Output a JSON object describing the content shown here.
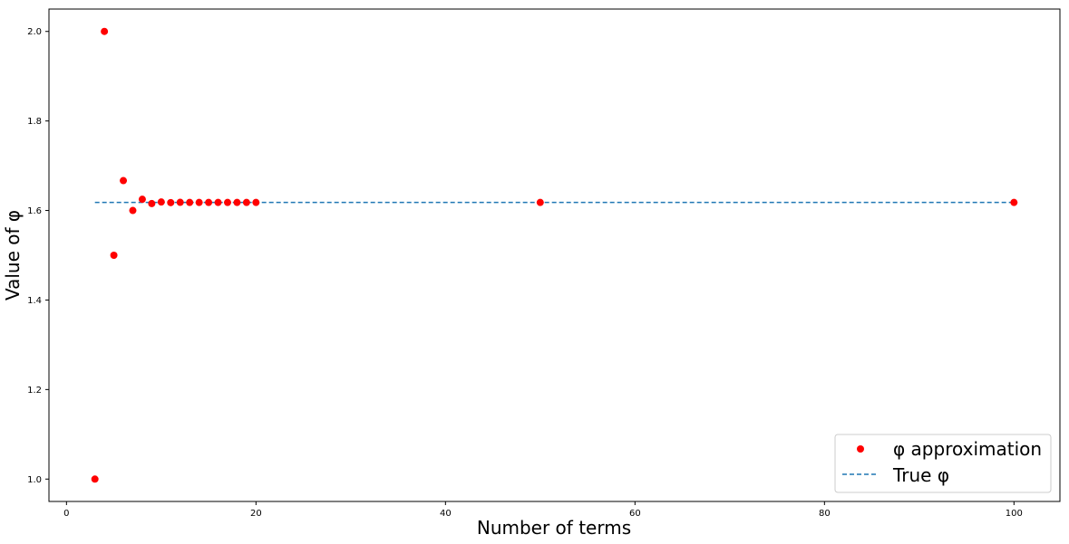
{
  "chart_data": {
    "type": "scatter",
    "xlabel": "Number of terms",
    "ylabel": "Value of φ",
    "xlim": [
      -1.85,
      104.85
    ],
    "ylim": [
      0.95,
      2.05
    ],
    "xticks": [
      0,
      20,
      40,
      60,
      80,
      100
    ],
    "yticks": [
      1.0,
      1.2,
      1.4,
      1.6,
      1.8,
      2.0
    ],
    "x_tick_labels": [
      "0",
      "20",
      "40",
      "60",
      "80",
      "100"
    ],
    "y_tick_labels": [
      "1.0",
      "1.2",
      "1.4",
      "1.6",
      "1.8",
      "2.0"
    ],
    "grid": false,
    "legend_position": "bottom-right",
    "series": [
      {
        "name": "φ approximation",
        "style": "markers",
        "color": "#ff0000",
        "points": [
          [
            3,
            1.0
          ],
          [
            4,
            2.0
          ],
          [
            5,
            1.5
          ],
          [
            6,
            1.6667
          ],
          [
            7,
            1.6
          ],
          [
            8,
            1.625
          ],
          [
            9,
            1.6154
          ],
          [
            10,
            1.619
          ],
          [
            11,
            1.6176
          ],
          [
            12,
            1.6182
          ],
          [
            13,
            1.618
          ],
          [
            14,
            1.618
          ],
          [
            15,
            1.618
          ],
          [
            16,
            1.618
          ],
          [
            17,
            1.618
          ],
          [
            18,
            1.618
          ],
          [
            19,
            1.618
          ],
          [
            20,
            1.618
          ],
          [
            50,
            1.618
          ],
          [
            100,
            1.618
          ]
        ]
      },
      {
        "name": "True φ",
        "style": "dashed-line",
        "color": "#1f77b4",
        "points": [
          [
            3,
            1.618034
          ],
          [
            100,
            1.618034
          ]
        ]
      }
    ]
  }
}
